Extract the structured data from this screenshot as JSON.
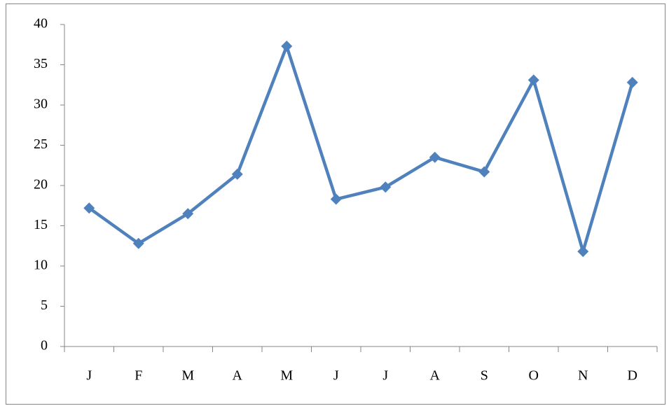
{
  "chart_data": {
    "type": "line",
    "categories": [
      "J",
      "F",
      "M",
      "A",
      "M",
      "J",
      "J",
      "A",
      "S",
      "O",
      "N",
      "D"
    ],
    "values": [
      17.2,
      12.8,
      16.5,
      21.4,
      37.3,
      18.3,
      19.8,
      23.5,
      21.7,
      33.1,
      11.8,
      32.8
    ],
    "color": "#4f81bd",
    "ylim": [
      0,
      40
    ],
    "yticks": [
      0,
      5,
      10,
      15,
      20,
      25,
      30,
      35,
      40
    ],
    "grid": false
  }
}
